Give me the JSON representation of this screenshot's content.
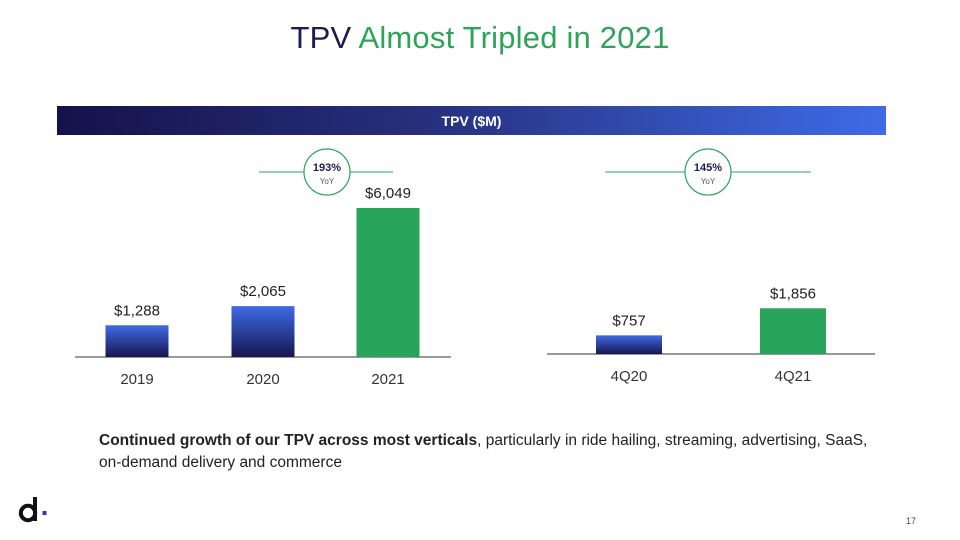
{
  "title": {
    "part1": "TPV",
    "part2": "Almost Tripled in 2021"
  },
  "banner": "TPV ($M)",
  "colors": {
    "navy": "#1e1a52",
    "green": "#28a55a",
    "blue": "#3e6be8"
  },
  "chart_data": [
    {
      "type": "bar",
      "categories": [
        "2019",
        "2020",
        "2021"
      ],
      "values": [
        1288,
        2065,
        6049
      ],
      "data_labels": [
        "$1,288",
        "$2,065",
        "$6,049"
      ],
      "highlight_index": 2,
      "growth_badge": {
        "value": "193%",
        "sub": "YoY"
      }
    },
    {
      "type": "bar",
      "categories": [
        "4Q20",
        "4Q21"
      ],
      "values": [
        757,
        1856
      ],
      "data_labels": [
        "$757",
        "$1,856"
      ],
      "highlight_index": 1,
      "growth_badge": {
        "value": "145%",
        "sub": "YoY"
      }
    }
  ],
  "description": {
    "bold": "Continued growth of our TPV across most verticals",
    "rest": ", particularly in ride hailing, streaming, advertising, SaaS, on-demand delivery and commerce"
  },
  "page_number": "17",
  "logo_icon": "dlocal-logo-icon"
}
